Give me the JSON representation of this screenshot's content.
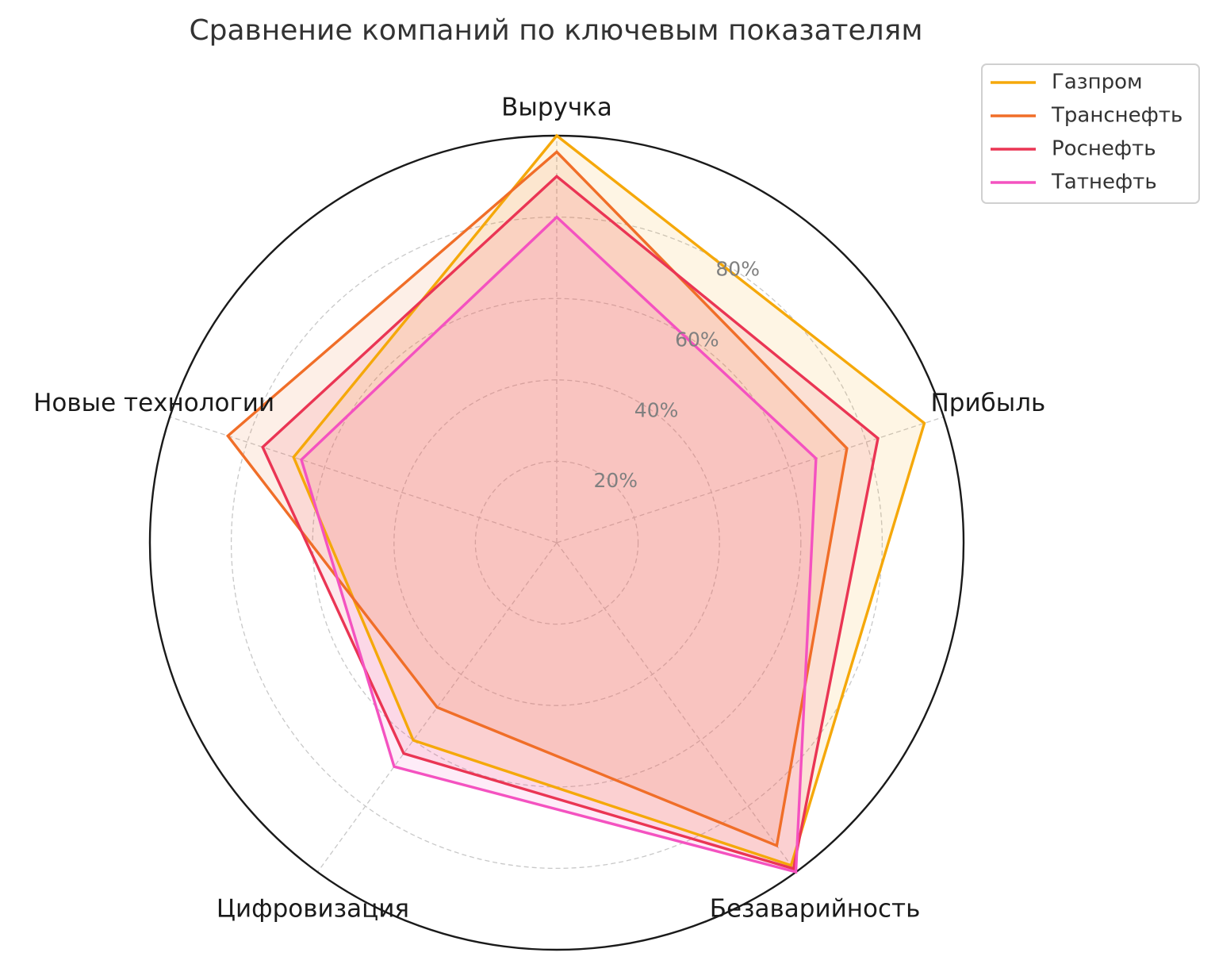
{
  "chart_data": {
    "type": "radar",
    "title": "Сравнение компаний по ключевым показателям",
    "axes": [
      "Выручка",
      "Прибыль",
      "Безаварийность",
      "Цифровизация",
      "Новые технологии"
    ],
    "rlim": [
      0,
      100
    ],
    "r_ticks": [
      20,
      40,
      60,
      80
    ],
    "r_tick_labels": [
      "20%",
      "40%",
      "60%",
      "80%"
    ],
    "grid": true,
    "legend_position": "top-right",
    "series": [
      {
        "name": "Газпром",
        "color": "#f5a80a",
        "values": [
          100,
          95,
          98,
          60,
          68
        ]
      },
      {
        "name": "Транснефть",
        "color": "#f06e28",
        "values": [
          96,
          75,
          92,
          50,
          85
        ]
      },
      {
        "name": "Роснефть",
        "color": "#ea3554",
        "values": [
          90,
          83,
          99,
          64,
          76
        ]
      },
      {
        "name": "Татнефть",
        "color": "#f452c0",
        "values": [
          80,
          67,
          100,
          68,
          66
        ]
      }
    ]
  }
}
